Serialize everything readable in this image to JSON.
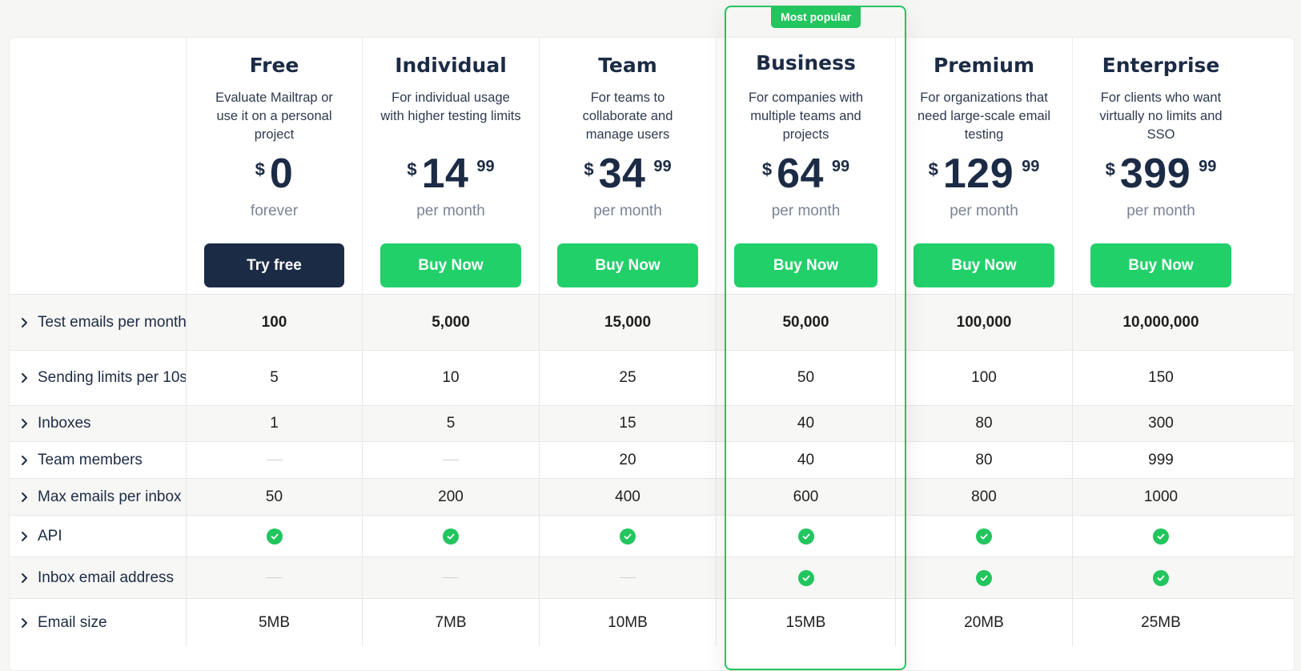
{
  "badge": "Most popular",
  "plans": [
    {
      "name": "Free",
      "desc": "Evaluate Mailtrap or use it on a personal project",
      "currency": "$",
      "amount": "0",
      "cents": "",
      "period": "forever",
      "button": "Try free"
    },
    {
      "name": "Individual",
      "desc": "For individual usage with higher testing limits",
      "currency": "$",
      "amount": "14",
      "cents": "99",
      "period": "per month",
      "button": "Buy Now"
    },
    {
      "name": "Team",
      "desc": "For teams to collaborate and manage users",
      "currency": "$",
      "amount": "34",
      "cents": "99",
      "period": "per month",
      "button": "Buy Now"
    },
    {
      "name": "Business",
      "desc": "For companies with multiple teams and projects",
      "currency": "$",
      "amount": "64",
      "cents": "99",
      "period": "per month",
      "button": "Buy Now"
    },
    {
      "name": "Premium",
      "desc": "For organizations that need large-scale email testing",
      "currency": "$",
      "amount": "129",
      "cents": "99",
      "period": "per month",
      "button": "Buy Now"
    },
    {
      "name": "Enterprise",
      "desc": "For clients who want virtually no limits and SSO",
      "currency": "$",
      "amount": "399",
      "cents": "99",
      "period": "per month",
      "button": "Buy Now"
    }
  ],
  "features": [
    {
      "label": "Test emails per month",
      "values": [
        "100",
        "5,000",
        "15,000",
        "50,000",
        "100,000",
        "10,000,000"
      ]
    },
    {
      "label": "Sending limits per 10s",
      "values": [
        "5",
        "10",
        "25",
        "50",
        "100",
        "150"
      ]
    },
    {
      "label": "Inboxes",
      "values": [
        "1",
        "5",
        "15",
        "40",
        "80",
        "300"
      ]
    },
    {
      "label": "Team members",
      "values": [
        "—",
        "—",
        "20",
        "40",
        "80",
        "999"
      ]
    },
    {
      "label": "Max emails per inbox",
      "values": [
        "50",
        "200",
        "400",
        "600",
        "800",
        "1000"
      ]
    },
    {
      "label": "API",
      "values": [
        "✓",
        "✓",
        "✓",
        "✓",
        "✓",
        "✓"
      ]
    },
    {
      "label": "Inbox email address",
      "values": [
        "—",
        "—",
        "—",
        "✓",
        "✓",
        "✓"
      ]
    },
    {
      "label": "Email size",
      "values": [
        "5MB",
        "7MB",
        "10MB",
        "15MB",
        "20MB",
        "25MB"
      ]
    }
  ],
  "colors": {
    "accent": "#22c55e",
    "button_green": "#22d06a",
    "dark": "#1c2b45"
  }
}
